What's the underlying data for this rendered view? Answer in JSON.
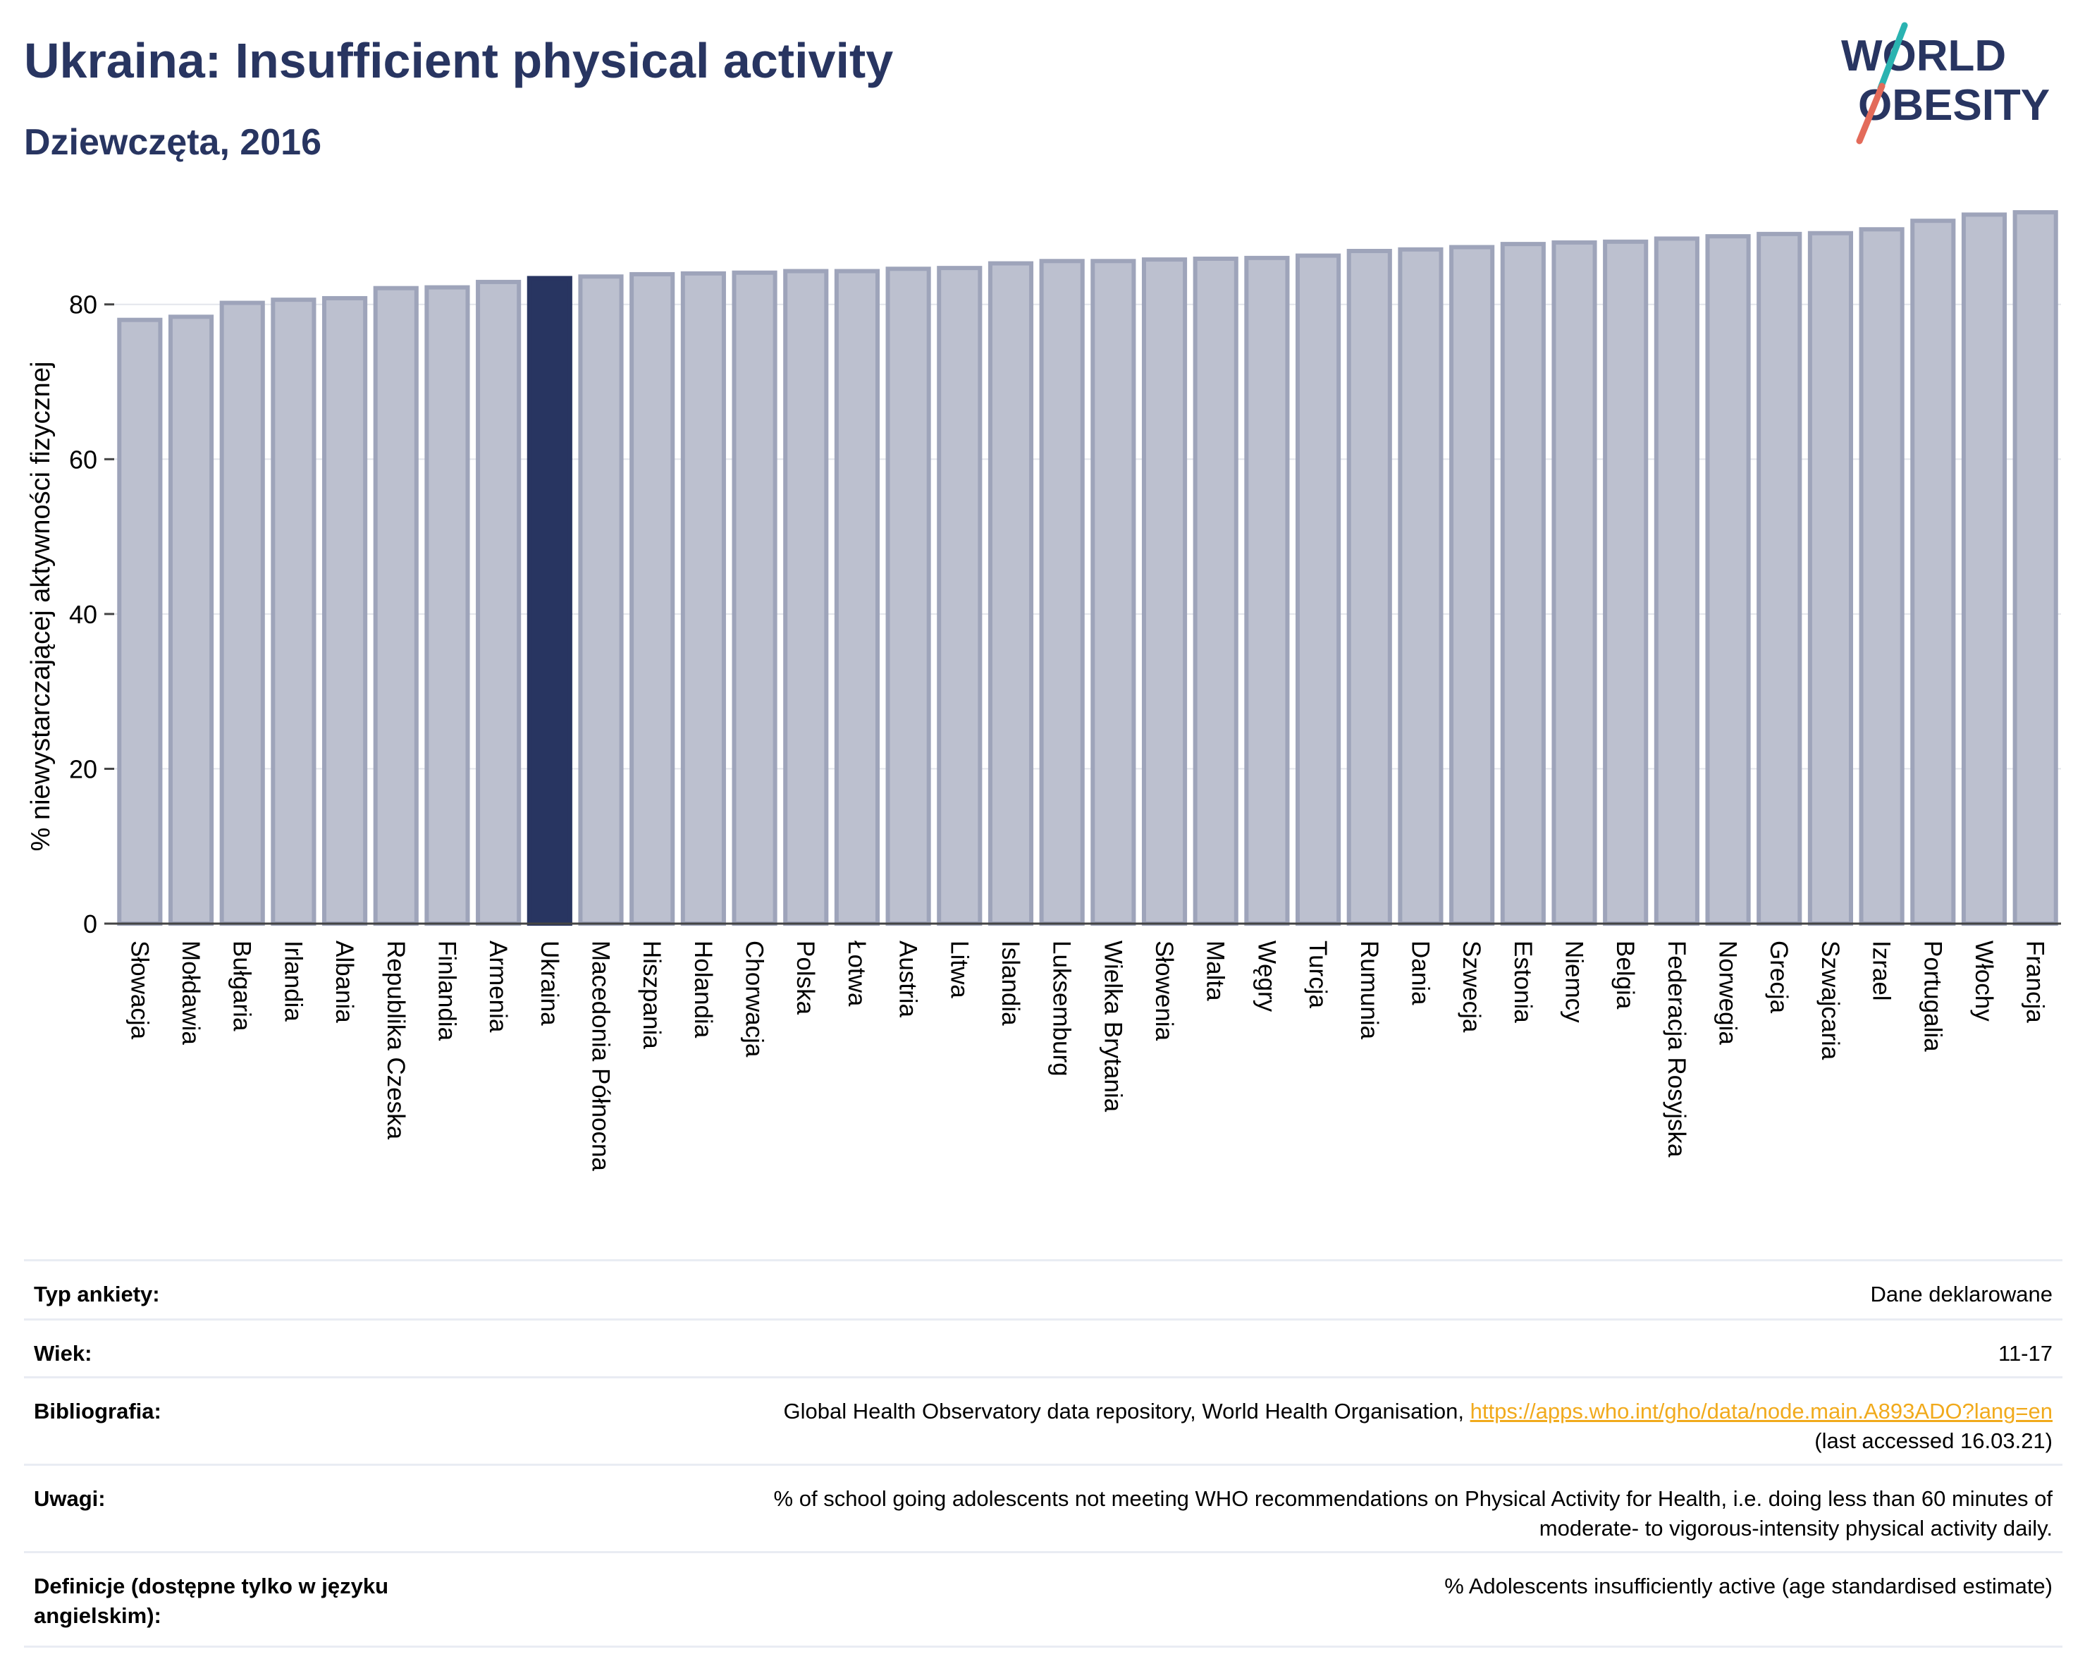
{
  "header": {
    "title": "Ukraina: Insufficient physical activity",
    "subtitle": "Dziewczęta, 2016"
  },
  "logo": {
    "line1": "WORLD",
    "line2": "OBESITY"
  },
  "colors": {
    "bar": "#bcc0cf",
    "bar_edge": "#9ea4ba",
    "highlight": "#283561",
    "text": "#283561",
    "grid": "#e4e6ec",
    "link": "#f1aa1c",
    "logo_teal": "#2ab3b1",
    "logo_coral": "#e36b5a"
  },
  "chart_data": {
    "type": "bar",
    "title": "Ukraina: Insufficient physical activity",
    "subtitle": "Dziewczęta, 2016",
    "xlabel": "",
    "ylabel": "% niewystarczającej aktywności fizycznej",
    "ylim": [
      0,
      92
    ],
    "yticks": [
      0,
      20,
      40,
      60,
      80
    ],
    "grid": true,
    "highlight": "Ukraina",
    "categories": [
      "Słowacja",
      "Mołdawia",
      "Bułgaria",
      "Irlandia",
      "Albania",
      "Republika Czeska",
      "Finlandia",
      "Armenia",
      "Ukraina",
      "Macedonia Północna",
      "Hiszpania",
      "Holandia",
      "Chorwacja",
      "Polska",
      "Łotwa",
      "Austria",
      "Litwa",
      "Islandia",
      "Luksemburg",
      "Wielka Brytania",
      "Słowenia",
      "Malta",
      "Węgry",
      "Turcja",
      "Rumunia",
      "Dania",
      "Szwecja",
      "Estonia",
      "Niemcy",
      "Belgia",
      "Federacja Rosyjska",
      "Norwegia",
      "Grecja",
      "Szwajcaria",
      "Izrael",
      "Portugalia",
      "Włochy",
      "Francja"
    ],
    "values": [
      78.0,
      78.4,
      80.2,
      80.6,
      80.8,
      82.1,
      82.2,
      82.9,
      83.4,
      83.6,
      83.9,
      84.0,
      84.1,
      84.3,
      84.3,
      84.6,
      84.7,
      85.3,
      85.6,
      85.6,
      85.8,
      85.9,
      86.0,
      86.3,
      86.9,
      87.1,
      87.4,
      87.8,
      88.0,
      88.1,
      88.5,
      88.8,
      89.1,
      89.2,
      89.7,
      90.8,
      91.6,
      91.9
    ]
  },
  "meta": {
    "survey_type": {
      "label": "Typ ankiety:",
      "value": "Dane deklarowane"
    },
    "age": {
      "label": "Wiek:",
      "value": "11-17"
    },
    "bibliography": {
      "label": "Bibliografia:",
      "text": "Global Health Observatory data repository, World Health Organisation, ",
      "link": "https://apps.who.int/gho/data/node.main.A893ADO?lang=en",
      "note": "(last accessed 16.03.21)"
    },
    "notes": {
      "label": "Uwagi:",
      "line1": "% of school going adolescents not meeting WHO recommendations on Physical Activity for Health, i.e. doing less than 60 minutes of",
      "line2": "moderate- to vigorous-intensity physical activity daily."
    },
    "definitions": {
      "label": "Definicje (dostępne tylko w języku angielskim):",
      "value": "% Adolescents insufficiently active (age standardised estimate)"
    }
  }
}
